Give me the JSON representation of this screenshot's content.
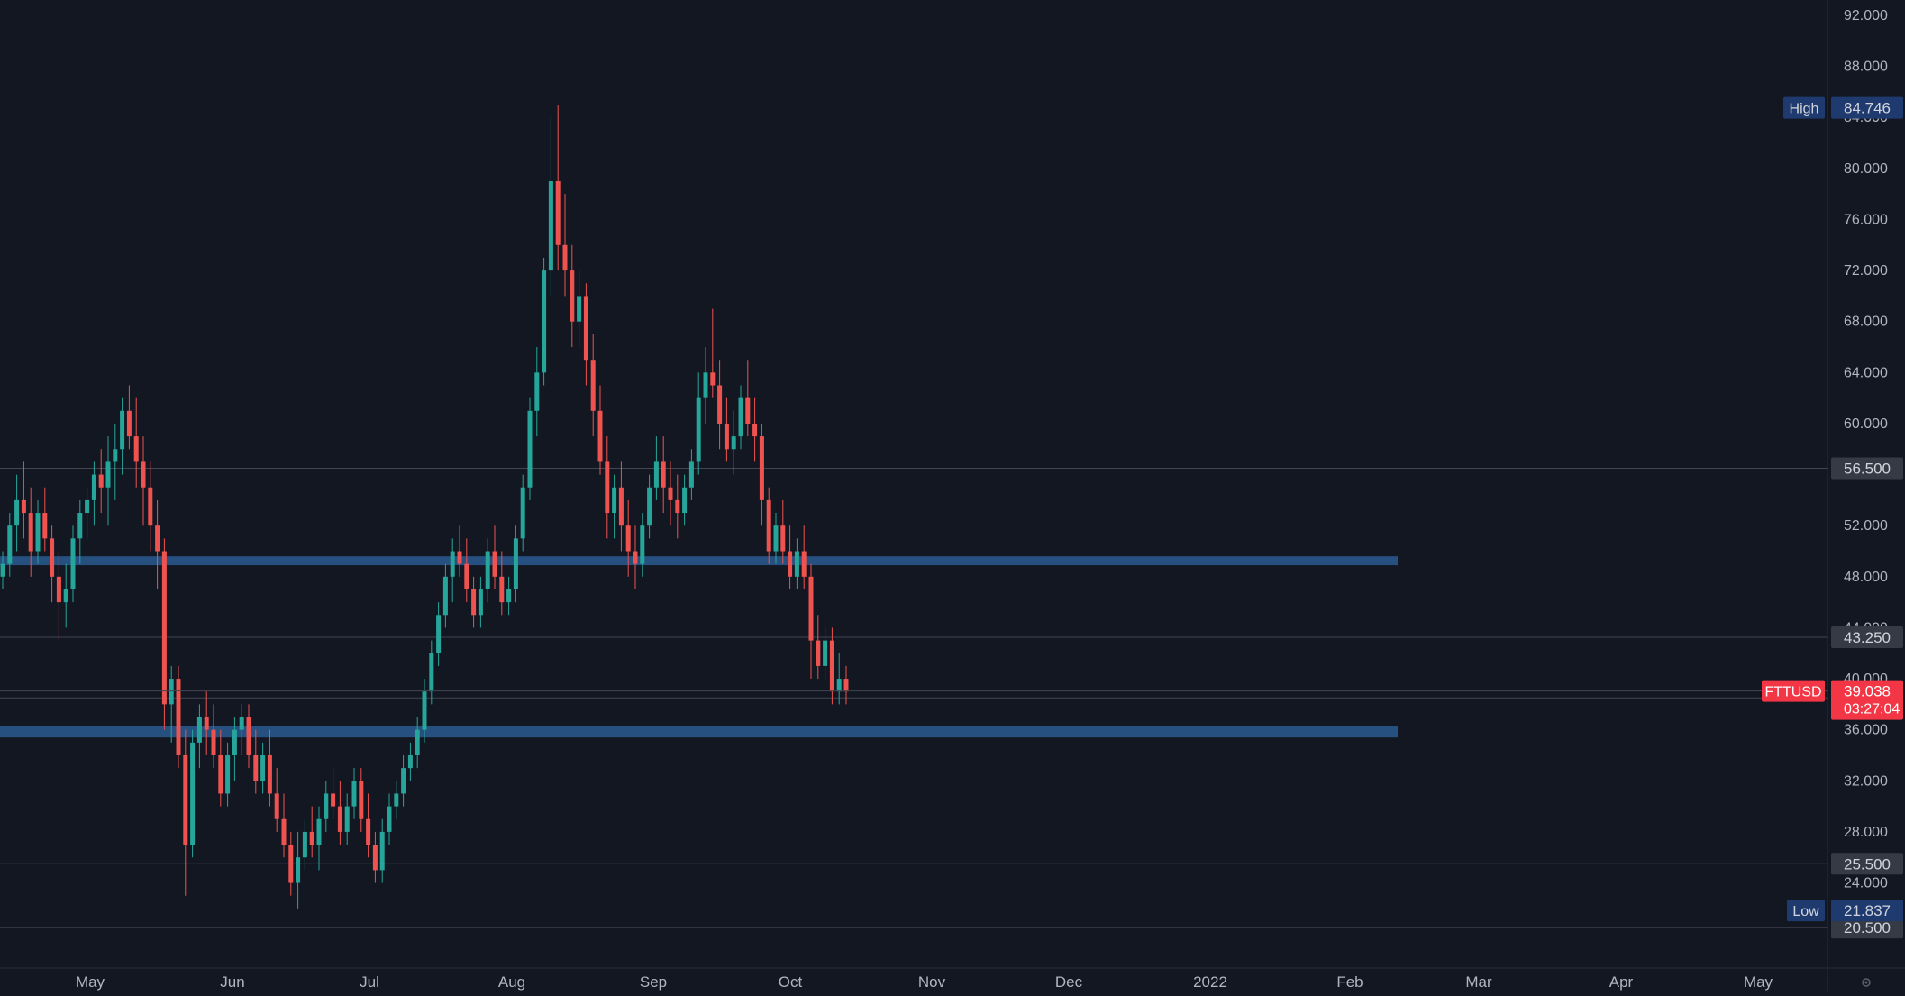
{
  "symbol": "FTTUSD",
  "colors": {
    "background": "#131722",
    "up": "#26a69a",
    "down": "#ef5350",
    "zone": "#2a5a8f",
    "axis_text": "#b2b5be",
    "level_line": "#434651",
    "level_tag": "#363a45",
    "stat_tag": "#1f3a6e",
    "price_tag": "#f23645"
  },
  "axis": {
    "price_ticks": [
      "92.000",
      "88.000",
      "84.000",
      "80.000",
      "76.000",
      "72.000",
      "68.000",
      "64.000",
      "60.000",
      "56.000",
      "52.000",
      "48.000",
      "44.000",
      "40.000",
      "36.000",
      "32.000",
      "28.000",
      "24.000"
    ],
    "month_ticks": [
      "May",
      "Jun",
      "Jul",
      "Aug",
      "Sep",
      "Oct",
      "Nov",
      "Dec",
      "2022",
      "Feb",
      "Mar",
      "Apr",
      "May"
    ]
  },
  "levels": [
    "56.500",
    "43.250",
    "38.500",
    "25.500",
    "20.500"
  ],
  "high": {
    "label": "High",
    "value": "84.746"
  },
  "low": {
    "label": "Low",
    "value": "21.837"
  },
  "last": {
    "value": "39.038",
    "countdown": "03:27:04"
  },
  "settings_icon": "gear-icon",
  "chart_data": {
    "type": "candlestick",
    "price_range": [
      20.5,
      92.0
    ],
    "zones": [
      {
        "from": 48.9,
        "to": 49.6
      },
      {
        "from": 35.4,
        "to": 36.3
      }
    ],
    "candles_ohlc": [
      [
        48,
        50,
        47,
        49
      ],
      [
        49,
        53,
        48,
        52
      ],
      [
        52,
        56,
        50,
        54
      ],
      [
        54,
        57,
        51,
        53
      ],
      [
        53,
        55,
        48,
        50
      ],
      [
        50,
        54,
        49,
        53
      ],
      [
        53,
        55,
        50,
        51
      ],
      [
        51,
        52,
        46,
        48
      ],
      [
        48,
        50,
        43,
        46
      ],
      [
        46,
        49,
        44,
        47
      ],
      [
        47,
        52,
        46,
        51
      ],
      [
        51,
        54,
        49,
        53
      ],
      [
        53,
        55,
        51,
        54
      ],
      [
        54,
        57,
        52,
        56
      ],
      [
        56,
        58,
        53,
        55
      ],
      [
        55,
        59,
        52,
        57
      ],
      [
        57,
        60,
        54,
        58
      ],
      [
        58,
        62,
        56,
        61
      ],
      [
        61,
        63,
        58,
        59
      ],
      [
        59,
        62,
        55,
        57
      ],
      [
        57,
        59,
        52,
        55
      ],
      [
        55,
        57,
        50,
        52
      ],
      [
        52,
        54,
        47,
        50
      ],
      [
        50,
        51,
        36,
        38
      ],
      [
        38,
        41,
        35,
        40
      ],
      [
        40,
        41,
        33,
        34
      ],
      [
        34,
        36,
        23,
        27
      ],
      [
        27,
        36,
        26,
        35
      ],
      [
        35,
        38,
        33,
        37
      ],
      [
        37,
        39,
        34,
        36
      ],
      [
        36,
        38,
        33,
        34
      ],
      [
        34,
        36,
        30,
        31
      ],
      [
        31,
        35,
        30,
        34
      ],
      [
        34,
        37,
        32,
        36
      ],
      [
        36,
        38,
        34,
        37
      ],
      [
        37,
        38,
        33,
        34
      ],
      [
        34,
        36,
        31,
        32
      ],
      [
        32,
        35,
        31,
        34
      ],
      [
        34,
        36,
        30,
        31
      ],
      [
        31,
        33,
        28,
        29
      ],
      [
        29,
        31,
        26,
        27
      ],
      [
        27,
        28,
        23,
        24
      ],
      [
        24,
        28,
        22,
        26
      ],
      [
        26,
        29,
        25,
        28
      ],
      [
        28,
        30,
        26,
        27
      ],
      [
        27,
        30,
        25,
        29
      ],
      [
        29,
        32,
        28,
        31
      ],
      [
        31,
        33,
        29,
        30
      ],
      [
        30,
        32,
        27,
        28
      ],
      [
        28,
        31,
        27,
        30
      ],
      [
        30,
        33,
        29,
        32
      ],
      [
        32,
        33,
        28,
        29
      ],
      [
        29,
        31,
        26,
        27
      ],
      [
        27,
        28,
        24,
        25
      ],
      [
        25,
        29,
        24,
        28
      ],
      [
        28,
        31,
        27,
        30
      ],
      [
        30,
        32,
        29,
        31
      ],
      [
        31,
        34,
        30,
        33
      ],
      [
        33,
        35,
        32,
        34
      ],
      [
        34,
        37,
        33,
        36
      ],
      [
        36,
        40,
        35,
        39
      ],
      [
        39,
        43,
        38,
        42
      ],
      [
        42,
        46,
        41,
        45
      ],
      [
        45,
        49,
        44,
        48
      ],
      [
        48,
        51,
        46,
        50
      ],
      [
        50,
        52,
        48,
        49
      ],
      [
        49,
        51,
        46,
        47
      ],
      [
        47,
        48,
        44,
        45
      ],
      [
        45,
        48,
        44,
        47
      ],
      [
        47,
        51,
        46,
        50
      ],
      [
        50,
        52,
        47,
        48
      ],
      [
        48,
        50,
        45,
        46
      ],
      [
        46,
        48,
        45,
        47
      ],
      [
        47,
        52,
        46,
        51
      ],
      [
        51,
        56,
        50,
        55
      ],
      [
        55,
        62,
        54,
        61
      ],
      [
        61,
        66,
        59,
        64
      ],
      [
        64,
        73,
        63,
        72
      ],
      [
        72,
        84,
        70,
        79
      ],
      [
        79,
        85,
        72,
        74
      ],
      [
        74,
        78,
        70,
        72
      ],
      [
        72,
        74,
        66,
        68
      ],
      [
        68,
        72,
        66,
        70
      ],
      [
        70,
        71,
        63,
        65
      ],
      [
        65,
        67,
        59,
        61
      ],
      [
        61,
        63,
        56,
        57
      ],
      [
        57,
        59,
        51,
        53
      ],
      [
        53,
        56,
        51,
        55
      ],
      [
        55,
        57,
        50,
        52
      ],
      [
        52,
        54,
        48,
        50
      ],
      [
        50,
        52,
        47,
        49
      ],
      [
        49,
        53,
        48,
        52
      ],
      [
        52,
        56,
        51,
        55
      ],
      [
        55,
        59,
        54,
        57
      ],
      [
        57,
        59,
        53,
        55
      ],
      [
        55,
        57,
        52,
        54
      ],
      [
        54,
        56,
        51,
        53
      ],
      [
        53,
        56,
        52,
        55
      ],
      [
        55,
        58,
        54,
        57
      ],
      [
        57,
        64,
        56,
        62
      ],
      [
        62,
        66,
        60,
        64
      ],
      [
        64,
        69,
        62,
        63
      ],
      [
        63,
        65,
        58,
        60
      ],
      [
        60,
        62,
        57,
        58
      ],
      [
        58,
        61,
        56,
        59
      ],
      [
        59,
        63,
        58,
        62
      ],
      [
        62,
        65,
        59,
        60
      ],
      [
        60,
        62,
        57,
        59
      ],
      [
        59,
        60,
        52,
        54
      ],
      [
        54,
        55,
        49,
        50
      ],
      [
        50,
        53,
        49,
        52
      ],
      [
        52,
        54,
        49,
        50
      ],
      [
        50,
        52,
        47,
        48
      ],
      [
        48,
        51,
        47,
        50
      ],
      [
        50,
        52,
        47,
        48
      ],
      [
        48,
        49,
        40,
        43
      ],
      [
        43,
        45,
        40,
        41
      ],
      [
        41,
        44,
        40,
        43
      ],
      [
        43,
        44,
        38,
        39
      ],
      [
        39,
        42,
        38,
        40
      ],
      [
        40,
        41,
        38,
        39
      ]
    ]
  }
}
